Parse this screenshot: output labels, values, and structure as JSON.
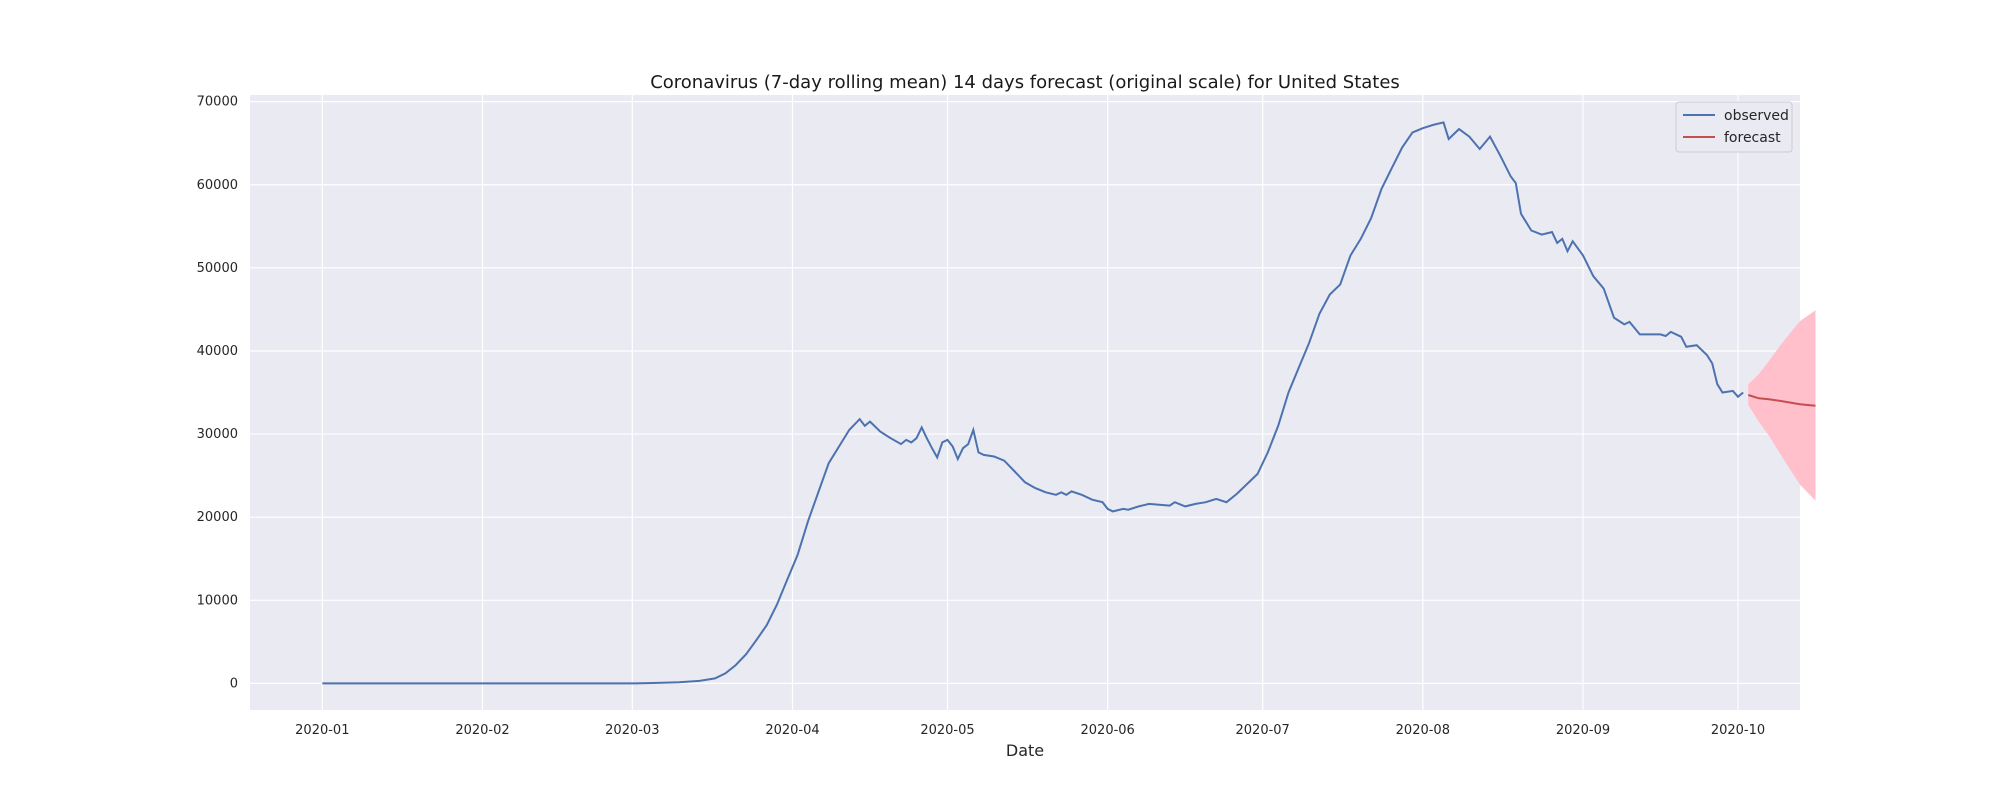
{
  "chart_data": {
    "type": "line",
    "title": "Coronavirus (7-day rolling mean) 14 days forecast (original scale) for United States",
    "xlabel": "Date",
    "ylabel": "",
    "x_ticks": [
      "2020-01",
      "2020-02",
      "2020-03",
      "2020-04",
      "2020-05",
      "2020-06",
      "2020-07",
      "2020-08",
      "2020-09",
      "2020-10"
    ],
    "y_ticks": [
      "0",
      "10000",
      "20000",
      "30000",
      "40000",
      "50000",
      "60000",
      "70000"
    ],
    "xlim": [
      "2019-12-18",
      "2020-10-13"
    ],
    "ylim": [
      -3200,
      70800
    ],
    "grid": true,
    "legend_position": "top-right",
    "colors": {
      "background": "#eaeaf2",
      "grid": "#ffffff",
      "observed": "#4c72b0",
      "forecast": "#c44e52",
      "band": "#ffc0cb"
    },
    "series": [
      {
        "name": "observed",
        "points": [
          [
            "2020-01-01",
            0
          ],
          [
            "2020-02-01",
            0
          ],
          [
            "2020-03-01",
            0
          ],
          [
            "2020-03-05",
            50
          ],
          [
            "2020-03-10",
            150
          ],
          [
            "2020-03-14",
            300
          ],
          [
            "2020-03-17",
            600
          ],
          [
            "2020-03-19",
            1200
          ],
          [
            "2020-03-21",
            2200
          ],
          [
            "2020-03-23",
            3500
          ],
          [
            "2020-03-25",
            5200
          ],
          [
            "2020-03-27",
            7000
          ],
          [
            "2020-03-29",
            9500
          ],
          [
            "2020-03-31",
            12500
          ],
          [
            "2020-04-02",
            15500
          ],
          [
            "2020-04-04",
            19500
          ],
          [
            "2020-04-06",
            23000
          ],
          [
            "2020-04-08",
            26500
          ],
          [
            "2020-04-10",
            28500
          ],
          [
            "2020-04-12",
            30500
          ],
          [
            "2020-04-14",
            31800
          ],
          [
            "2020-04-15",
            31000
          ],
          [
            "2020-04-16",
            31500
          ],
          [
            "2020-04-18",
            30300
          ],
          [
            "2020-04-20",
            29500
          ],
          [
            "2020-04-22",
            28800
          ],
          [
            "2020-04-23",
            29300
          ],
          [
            "2020-04-24",
            29000
          ],
          [
            "2020-04-25",
            29500
          ],
          [
            "2020-04-26",
            30800
          ],
          [
            "2020-04-27",
            29500
          ],
          [
            "2020-04-28",
            28300
          ],
          [
            "2020-04-29",
            27200
          ],
          [
            "2020-04-30",
            29000
          ],
          [
            "2020-05-01",
            29300
          ],
          [
            "2020-05-02",
            28500
          ],
          [
            "2020-05-03",
            27000
          ],
          [
            "2020-05-04",
            28300
          ],
          [
            "2020-05-05",
            28800
          ],
          [
            "2020-05-06",
            30500
          ],
          [
            "2020-05-07",
            27800
          ],
          [
            "2020-05-08",
            27500
          ],
          [
            "2020-05-10",
            27300
          ],
          [
            "2020-05-12",
            26800
          ],
          [
            "2020-05-14",
            25500
          ],
          [
            "2020-05-16",
            24200
          ],
          [
            "2020-05-18",
            23500
          ],
          [
            "2020-05-20",
            23000
          ],
          [
            "2020-05-22",
            22700
          ],
          [
            "2020-05-23",
            23000
          ],
          [
            "2020-05-24",
            22700
          ],
          [
            "2020-05-25",
            23100
          ],
          [
            "2020-05-27",
            22700
          ],
          [
            "2020-05-29",
            22100
          ],
          [
            "2020-05-31",
            21800
          ],
          [
            "2020-06-01",
            21000
          ],
          [
            "2020-06-02",
            20700
          ],
          [
            "2020-06-04",
            21000
          ],
          [
            "2020-06-05",
            20900
          ],
          [
            "2020-06-07",
            21300
          ],
          [
            "2020-06-09",
            21600
          ],
          [
            "2020-06-11",
            21500
          ],
          [
            "2020-06-13",
            21400
          ],
          [
            "2020-06-14",
            21800
          ],
          [
            "2020-06-16",
            21300
          ],
          [
            "2020-06-18",
            21600
          ],
          [
            "2020-06-20",
            21800
          ],
          [
            "2020-06-22",
            22200
          ],
          [
            "2020-06-24",
            21800
          ],
          [
            "2020-06-26",
            22800
          ],
          [
            "2020-06-28",
            24000
          ],
          [
            "2020-06-30",
            25200
          ],
          [
            "2020-07-02",
            27800
          ],
          [
            "2020-07-04",
            31000
          ],
          [
            "2020-07-06",
            35000
          ],
          [
            "2020-07-08",
            38000
          ],
          [
            "2020-07-10",
            41000
          ],
          [
            "2020-07-12",
            44500
          ],
          [
            "2020-07-14",
            46800
          ],
          [
            "2020-07-16",
            48000
          ],
          [
            "2020-07-18",
            51500
          ],
          [
            "2020-07-20",
            53500
          ],
          [
            "2020-07-22",
            56000
          ],
          [
            "2020-07-24",
            59500
          ],
          [
            "2020-07-26",
            62000
          ],
          [
            "2020-07-28",
            64500
          ],
          [
            "2020-07-30",
            66300
          ],
          [
            "2020-08-01",
            66800
          ],
          [
            "2020-08-03",
            67200
          ],
          [
            "2020-08-05",
            67500
          ],
          [
            "2020-08-06",
            65500
          ],
          [
            "2020-08-08",
            66700
          ],
          [
            "2020-08-10",
            65800
          ],
          [
            "2020-08-12",
            64300
          ],
          [
            "2020-08-14",
            65800
          ],
          [
            "2020-08-16",
            63500
          ],
          [
            "2020-08-18",
            61000
          ],
          [
            "2020-08-19",
            60200
          ],
          [
            "2020-08-20",
            56500
          ],
          [
            "2020-08-22",
            54500
          ],
          [
            "2020-08-24",
            54000
          ],
          [
            "2020-08-26",
            54300
          ],
          [
            "2020-08-27",
            53000
          ],
          [
            "2020-08-28",
            53500
          ],
          [
            "2020-08-29",
            52000
          ],
          [
            "2020-08-30",
            53200
          ],
          [
            "2020-09-01",
            51500
          ],
          [
            "2020-09-03",
            49000
          ],
          [
            "2020-09-05",
            47500
          ],
          [
            "2020-09-07",
            44000
          ],
          [
            "2020-09-09",
            43200
          ],
          [
            "2020-09-10",
            43500
          ],
          [
            "2020-09-12",
            42000
          ],
          [
            "2020-09-14",
            42000
          ],
          [
            "2020-09-16",
            42000
          ],
          [
            "2020-09-17",
            41800
          ],
          [
            "2020-09-18",
            42300
          ],
          [
            "2020-09-20",
            41700
          ],
          [
            "2020-09-21",
            40500
          ],
          [
            "2020-09-23",
            40700
          ],
          [
            "2020-09-25",
            39500
          ],
          [
            "2020-09-26",
            38500
          ],
          [
            "2020-09-27",
            36000
          ],
          [
            "2020-09-28",
            35000
          ],
          [
            "2020-09-30",
            35200
          ],
          [
            "2020-10-01",
            34500
          ],
          [
            "2020-10-02",
            35000
          ]
        ]
      },
      {
        "name": "forecast",
        "points": [
          [
            "2020-10-03",
            34700
          ],
          [
            "2020-10-05",
            34300
          ],
          [
            "2020-10-07",
            34200
          ],
          [
            "2020-10-09",
            34000
          ],
          [
            "2020-10-11",
            33800
          ],
          [
            "2020-10-13",
            33600
          ],
          [
            "2020-10-16",
            33400
          ]
        ],
        "lower": [
          33500,
          31500,
          29800,
          27800,
          25800,
          23900,
          22000
        ],
        "upper": [
          36000,
          37200,
          38800,
          40500,
          42100,
          43600,
          44900
        ]
      }
    ]
  }
}
